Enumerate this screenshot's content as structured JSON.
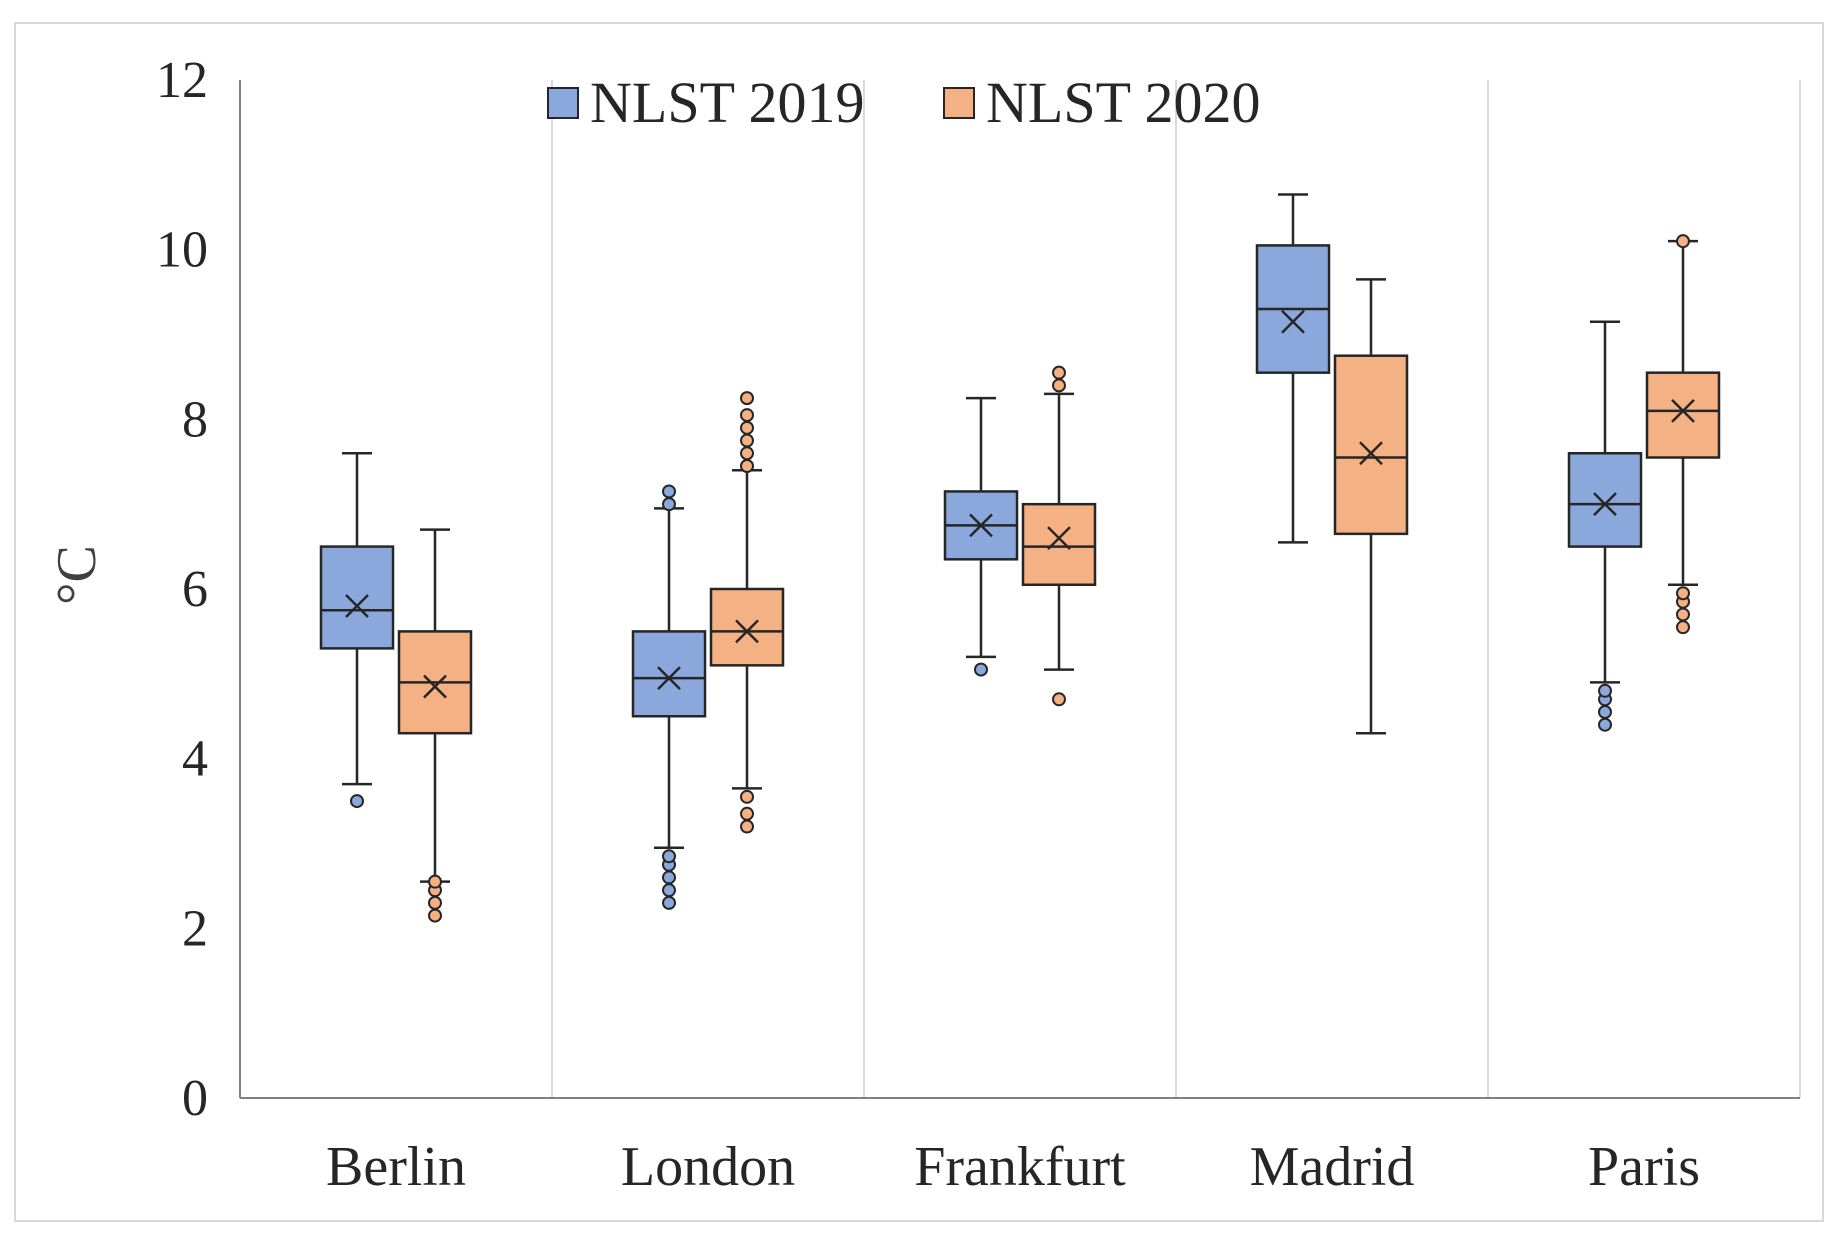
{
  "chart_data": {
    "type": "box",
    "title": "",
    "xlabel": "",
    "ylabel": "°C",
    "ylim": [
      0,
      12
    ],
    "yticks": [
      0,
      2,
      4,
      6,
      8,
      10,
      12
    ],
    "grid": "vertical separators between categories",
    "legend_position": "top-center",
    "categories": [
      "Berlin",
      "London",
      "Frankfurt",
      "Madrid",
      "Paris"
    ],
    "series": [
      {
        "name": "NLST 2019",
        "color": "#8aa8dc",
        "stats": [
          {
            "min": 3.7,
            "q1": 5.3,
            "median": 5.75,
            "q3": 6.5,
            "max": 7.6,
            "mean": 5.8,
            "outliers": [
              3.5
            ]
          },
          {
            "min": 2.95,
            "q1": 4.5,
            "median": 4.95,
            "q3": 5.5,
            "max": 6.95,
            "mean": 4.95,
            "outliers": [
              2.3,
              2.45,
              2.6,
              2.75,
              2.85,
              7.0,
              7.15
            ]
          },
          {
            "min": 5.2,
            "q1": 6.35,
            "median": 6.75,
            "q3": 7.15,
            "max": 8.25,
            "mean": 6.75,
            "outliers": [
              5.05
            ]
          },
          {
            "min": 6.55,
            "q1": 8.55,
            "median": 9.3,
            "q3": 10.05,
            "max": 10.65,
            "mean": 9.15,
            "outliers": []
          },
          {
            "min": 4.9,
            "q1": 6.5,
            "median": 7.0,
            "q3": 7.6,
            "max": 9.15,
            "mean": 7.0,
            "outliers": [
              4.4,
              4.55,
              4.7,
              4.8
            ]
          }
        ]
      },
      {
        "name": "NLST 2020",
        "color": "#f4b183",
        "stats": [
          {
            "min": 2.55,
            "q1": 4.3,
            "median": 4.9,
            "q3": 5.5,
            "max": 6.7,
            "mean": 4.85,
            "outliers": [
              2.15,
              2.3,
              2.45,
              2.55
            ]
          },
          {
            "min": 3.65,
            "q1": 5.1,
            "median": 5.5,
            "q3": 6.0,
            "max": 7.4,
            "mean": 5.5,
            "outliers": [
              3.2,
              3.35,
              3.55,
              7.45,
              7.6,
              7.75,
              7.9,
              8.05,
              8.25
            ]
          },
          {
            "min": 5.05,
            "q1": 6.05,
            "median": 6.5,
            "q3": 7.0,
            "max": 8.3,
            "mean": 6.6,
            "outliers": [
              4.7,
              8.4,
              8.55
            ]
          },
          {
            "min": 4.3,
            "q1": 6.65,
            "median": 7.55,
            "q3": 8.75,
            "max": 9.65,
            "mean": 7.6,
            "outliers": []
          },
          {
            "min": 6.05,
            "q1": 7.55,
            "median": 8.1,
            "q3": 8.55,
            "max": 10.1,
            "mean": 8.1,
            "outliers": [
              5.55,
              5.7,
              5.85,
              5.95,
              10.1
            ]
          }
        ]
      }
    ]
  }
}
